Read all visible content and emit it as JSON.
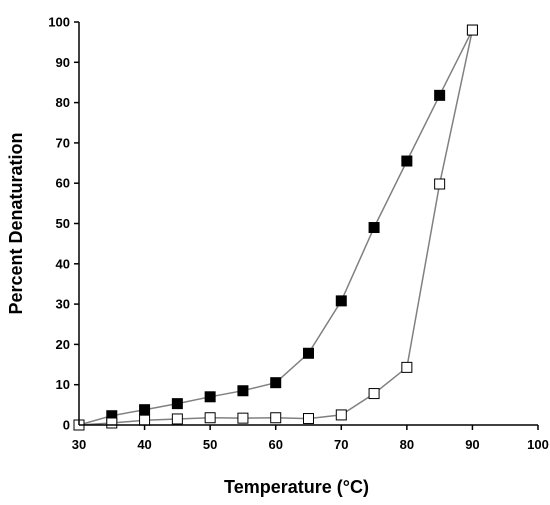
{
  "chart_data": {
    "type": "scatter",
    "title": "",
    "xlabel": "Temperature (°C)",
    "ylabel": "Percent Denaturation",
    "xlim": [
      30,
      100
    ],
    "ylim": [
      0,
      100
    ],
    "xticks": [
      30,
      40,
      50,
      60,
      70,
      80,
      90,
      100
    ],
    "yticks": [
      0,
      10,
      20,
      30,
      40,
      50,
      60,
      70,
      80,
      90,
      100
    ],
    "grid": false,
    "legend": "none",
    "series": [
      {
        "marker": "filled-square",
        "color": "#000000",
        "line_color": "#808080",
        "x": [
          30,
          35,
          40,
          45,
          50,
          55,
          60,
          65,
          70,
          75,
          80,
          85,
          90
        ],
        "y": [
          0,
          2.3,
          3.8,
          5.3,
          7,
          8.5,
          10.5,
          17.8,
          30.8,
          49,
          65.5,
          81.8,
          98
        ]
      },
      {
        "marker": "open-square",
        "color": "#ffffff",
        "line_color": "#808080",
        "x": [
          30,
          35,
          40,
          45,
          50,
          55,
          60,
          65,
          70,
          75,
          80,
          85,
          90
        ],
        "y": [
          0,
          0.5,
          1.2,
          1.5,
          1.8,
          1.7,
          1.8,
          1.6,
          2.5,
          7.8,
          14.3,
          59.8,
          98
        ]
      }
    ]
  }
}
